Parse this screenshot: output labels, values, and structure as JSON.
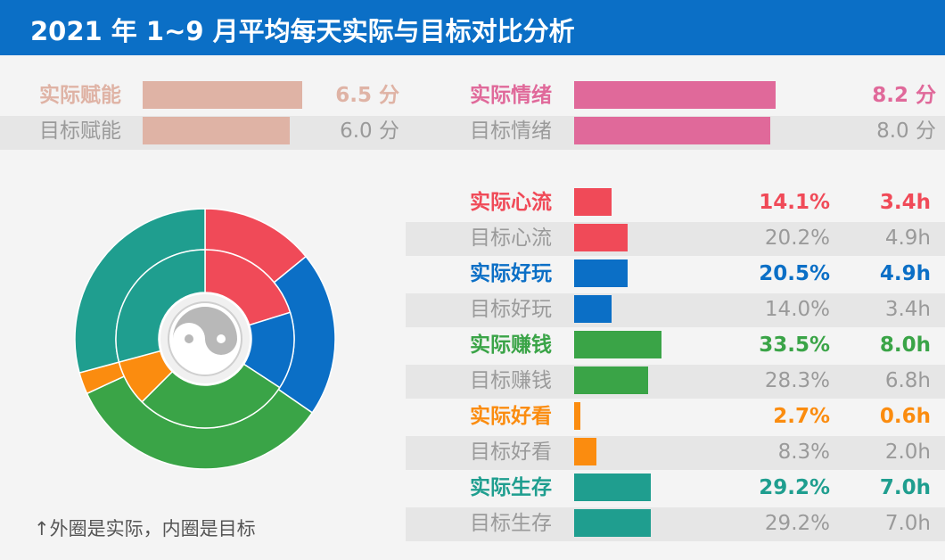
{
  "title": "2021 年 1~9 月平均每天实际与目标对比分析",
  "note": "↑外圈是实际，内圈是目标",
  "colors": {
    "energy": "#dfb3a5",
    "emotion": "#e0699a",
    "flow": "#f04a58",
    "fun": "#0b6fc6",
    "earn": "#3aa447",
    "look": "#fb8c0f",
    "live": "#1f9e8f",
    "target_text": "#9a9a9a"
  },
  "scores": [
    {
      "label": "实际赋能",
      "value": "6.5 分",
      "score": 6.5,
      "kind": "actual",
      "color": "#dfb3a5"
    },
    {
      "label": "目标赋能",
      "value": "6.0 分",
      "score": 6.0,
      "kind": "target",
      "color": "#dfb3a5"
    },
    {
      "label": "实际情绪",
      "value": "8.2 分",
      "score": 8.2,
      "kind": "actual",
      "color": "#e0699a"
    },
    {
      "label": "目标情绪",
      "value": "8.0 分",
      "score": 8.0,
      "kind": "target",
      "color": "#e0699a"
    }
  ],
  "categories": [
    {
      "label": "实际心流",
      "pct": "14.1%",
      "hours": "3.4h",
      "h": 3.4,
      "kind": "actual",
      "color": "#f04a58"
    },
    {
      "label": "目标心流",
      "pct": "20.2%",
      "hours": "4.9h",
      "h": 4.9,
      "kind": "target",
      "color": "#f04a58"
    },
    {
      "label": "实际好玩",
      "pct": "20.5%",
      "hours": "4.9h",
      "h": 4.9,
      "kind": "actual",
      "color": "#0b6fc6"
    },
    {
      "label": "目标好玩",
      "pct": "14.0%",
      "hours": "3.4h",
      "h": 3.4,
      "kind": "target",
      "color": "#0b6fc6"
    },
    {
      "label": "实际赚钱",
      "pct": "33.5%",
      "hours": "8.0h",
      "h": 8.0,
      "kind": "actual",
      "color": "#3aa447"
    },
    {
      "label": "目标赚钱",
      "pct": "28.3%",
      "hours": "6.8h",
      "h": 6.8,
      "kind": "target",
      "color": "#3aa447"
    },
    {
      "label": "实际好看",
      "pct": "2.7%",
      "hours": "0.6h",
      "h": 0.6,
      "kind": "actual",
      "color": "#fb8c0f"
    },
    {
      "label": "目标好看",
      "pct": "8.3%",
      "hours": "2.0h",
      "h": 2.0,
      "kind": "target",
      "color": "#fb8c0f"
    },
    {
      "label": "实际生存",
      "pct": "29.2%",
      "hours": "7.0h",
      "h": 7.0,
      "kind": "actual",
      "color": "#1f9e8f"
    },
    {
      "label": "目标生存",
      "pct": "29.2%",
      "hours": "7.0h",
      "h": 7.0,
      "kind": "target",
      "color": "#1f9e8f"
    }
  ],
  "chart_data": [
    {
      "type": "bar",
      "categories": [
        "实际赋能",
        "目标赋能",
        "实际情绪",
        "目标情绪"
      ],
      "values": [
        6.5,
        6.0,
        8.2,
        8.0
      ],
      "unit": "分"
    },
    {
      "type": "bar",
      "categories": [
        "实际心流",
        "目标心流",
        "实际好玩",
        "目标好玩",
        "实际赚钱",
        "目标赚钱",
        "实际好看",
        "目标好看",
        "实际生存",
        "目标生存"
      ],
      "values": [
        3.4,
        4.9,
        4.9,
        3.4,
        8.0,
        6.8,
        0.6,
        2.0,
        7.0,
        7.0
      ],
      "percent": [
        14.1,
        20.2,
        20.5,
        14.0,
        33.5,
        28.3,
        2.7,
        8.3,
        29.2,
        29.2
      ],
      "unit": "h"
    },
    {
      "type": "pie",
      "slices": [
        "心流",
        "好玩",
        "赚钱",
        "好看",
        "生存"
      ],
      "series": [
        {
          "ring": "outer",
          "values": [
            14.1,
            20.5,
            33.5,
            2.7,
            29.2
          ],
          "colors": [
            "#f04a58",
            "#0b6fc6",
            "#3aa447",
            "#fb8c0f",
            "#1f9e8f"
          ]
        },
        {
          "ring": "inner",
          "values": [
            20.2,
            14.0,
            28.3,
            8.3,
            29.2
          ],
          "colors": [
            "#f04a58",
            "#0b6fc6",
            "#3aa447",
            "#fb8c0f",
            "#1f9e8f"
          ]
        }
      ],
      "center_icon": "yin-yang-icon"
    }
  ]
}
